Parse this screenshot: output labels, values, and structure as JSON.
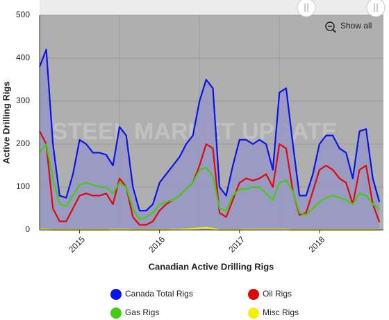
{
  "chart_data": {
    "type": "area_line",
    "x_axis_label": "Canadian Active Drilling Rigs",
    "y_axis_label": "Active Drilling Rigs",
    "watermark": "STEEL MARKET UPDATE",
    "button": "Show all",
    "x": [
      2015,
      2015.083,
      2015.167,
      2015.25,
      2015.333,
      2015.417,
      2015.5,
      2015.583,
      2015.667,
      2015.75,
      2015.833,
      2015.917,
      2016,
      2016.083,
      2016.167,
      2016.25,
      2016.333,
      2016.417,
      2016.5,
      2016.583,
      2016.667,
      2016.75,
      2016.833,
      2016.917,
      2017,
      2017.083,
      2017.167,
      2017.25,
      2017.333,
      2017.417,
      2017.5,
      2017.583,
      2017.667,
      2017.75,
      2017.833,
      2017.917,
      2018,
      2018.083,
      2018.167,
      2018.25,
      2018.333,
      2018.417,
      2018.5,
      2018.583,
      2018.667,
      2018.75,
      2018.833,
      2018.917,
      2019,
      2019.083,
      2019.167,
      2019.25
    ],
    "xlim": [
      2015,
      2019.3
    ],
    "xticks": [
      {
        "value": 2015.5,
        "label": "2015"
      },
      {
        "value": 2016.5,
        "label": "2016"
      },
      {
        "value": 2017.5,
        "label": "2017"
      },
      {
        "value": 2018.5,
        "label": "2018"
      }
    ],
    "xgrid": [
      2016,
      2017,
      2018
    ],
    "ylim": [
      0,
      500
    ],
    "yticks": [
      0,
      100,
      200,
      300,
      400,
      500
    ],
    "grid": true,
    "series": [
      {
        "name": "Canada Total Rigs",
        "color": "#0a14e6",
        "fill": "#9697c6",
        "values": [
          380,
          420,
          200,
          80,
          75,
          130,
          210,
          200,
          180,
          180,
          175,
          150,
          240,
          220,
          100,
          45,
          45,
          60,
          110,
          130,
          150,
          170,
          200,
          220,
          300,
          350,
          330,
          100,
          80,
          150,
          210,
          210,
          200,
          210,
          200,
          140,
          320,
          330,
          200,
          80,
          80,
          130,
          200,
          220,
          220,
          190,
          180,
          120,
          230,
          235,
          120,
          65
        ]
      },
      {
        "name": "Oil Rigs",
        "color": "#dd0a0a",
        "values": [
          230,
          200,
          50,
          20,
          20,
          50,
          80,
          85,
          80,
          80,
          85,
          60,
          120,
          100,
          30,
          12,
          12,
          20,
          45,
          60,
          70,
          80,
          95,
          110,
          150,
          200,
          190,
          40,
          30,
          70,
          110,
          120,
          115,
          120,
          130,
          100,
          200,
          190,
          90,
          35,
          40,
          90,
          140,
          150,
          140,
          120,
          110,
          60,
          140,
          150,
          60,
          18
        ]
      },
      {
        "name": "Gas Rigs",
        "color": "#44cc11",
        "values": [
          180,
          200,
          120,
          60,
          55,
          80,
          105,
          110,
          105,
          100,
          100,
          85,
          110,
          100,
          50,
          25,
          30,
          40,
          60,
          65,
          70,
          80,
          95,
          110,
          140,
          145,
          125,
          50,
          45,
          80,
          95,
          95,
          100,
          100,
          85,
          70,
          110,
          115,
          90,
          40,
          35,
          50,
          65,
          75,
          80,
          75,
          70,
          60,
          85,
          80,
          60,
          48
        ]
      },
      {
        "name": "Misc Rigs",
        "color": "#f5ee0a",
        "values": [
          1,
          1,
          0,
          0,
          0,
          0,
          0,
          0,
          0,
          0,
          0,
          1,
          1,
          1,
          0,
          0,
          0,
          0,
          0,
          0,
          1,
          1,
          2,
          3,
          4,
          5,
          3,
          0,
          0,
          0,
          0,
          1,
          1,
          1,
          1,
          1,
          1,
          1,
          0,
          0,
          0,
          0,
          0,
          0,
          0,
          0,
          0,
          0,
          0,
          0,
          0,
          0
        ]
      }
    ]
  }
}
